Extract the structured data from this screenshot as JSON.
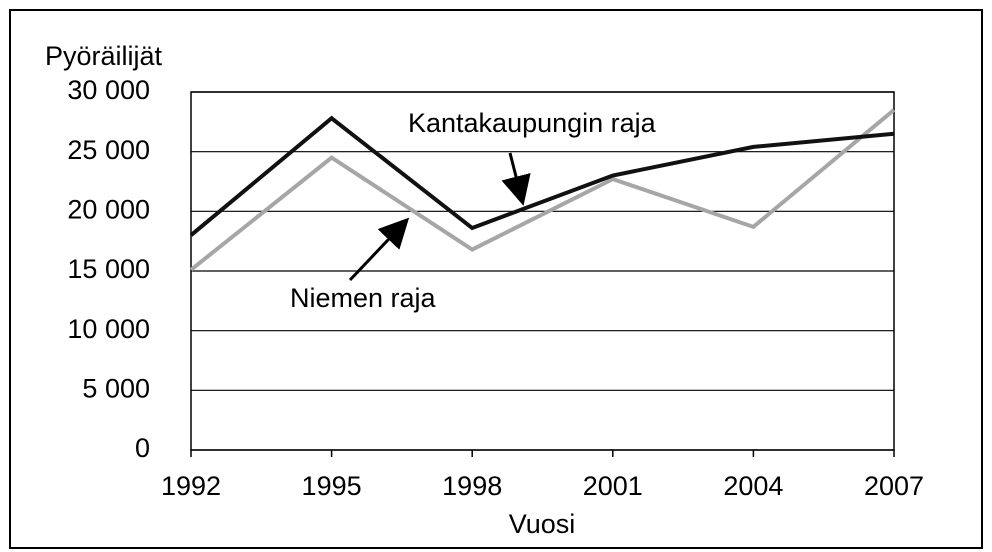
{
  "chart_data": {
    "type": "line",
    "y_label": "Pyöräilijät",
    "x_label": "Vuosi",
    "x": [
      1992,
      1995,
      1998,
      2001,
      2004,
      2007
    ],
    "series": [
      {
        "name": "Kantakaupungin raja",
        "color": "#111111",
        "values": [
          18000,
          27800,
          18600,
          23000,
          25400,
          26500
        ]
      },
      {
        "name": "Niemen raja",
        "color": "#a6a6a6",
        "values": [
          15100,
          24500,
          16800,
          22700,
          18700,
          28500
        ]
      }
    ],
    "xlim": [
      1992,
      2007
    ],
    "xticks": [
      1992,
      1995,
      1998,
      2001,
      2004,
      2007
    ],
    "ylim": [
      0,
      30000
    ],
    "yticks": [
      0,
      {
        "value": 5000,
        "label": "5 000"
      },
      {
        "value": 10000,
        "label": "10 000"
      },
      {
        "value": 15000,
        "label": "15 000"
      },
      {
        "value": 20000,
        "label": "20 000"
      },
      {
        "value": 25000,
        "label": "25 000"
      },
      {
        "value": 30000,
        "label": "30 000"
      }
    ],
    "grid": true
  }
}
